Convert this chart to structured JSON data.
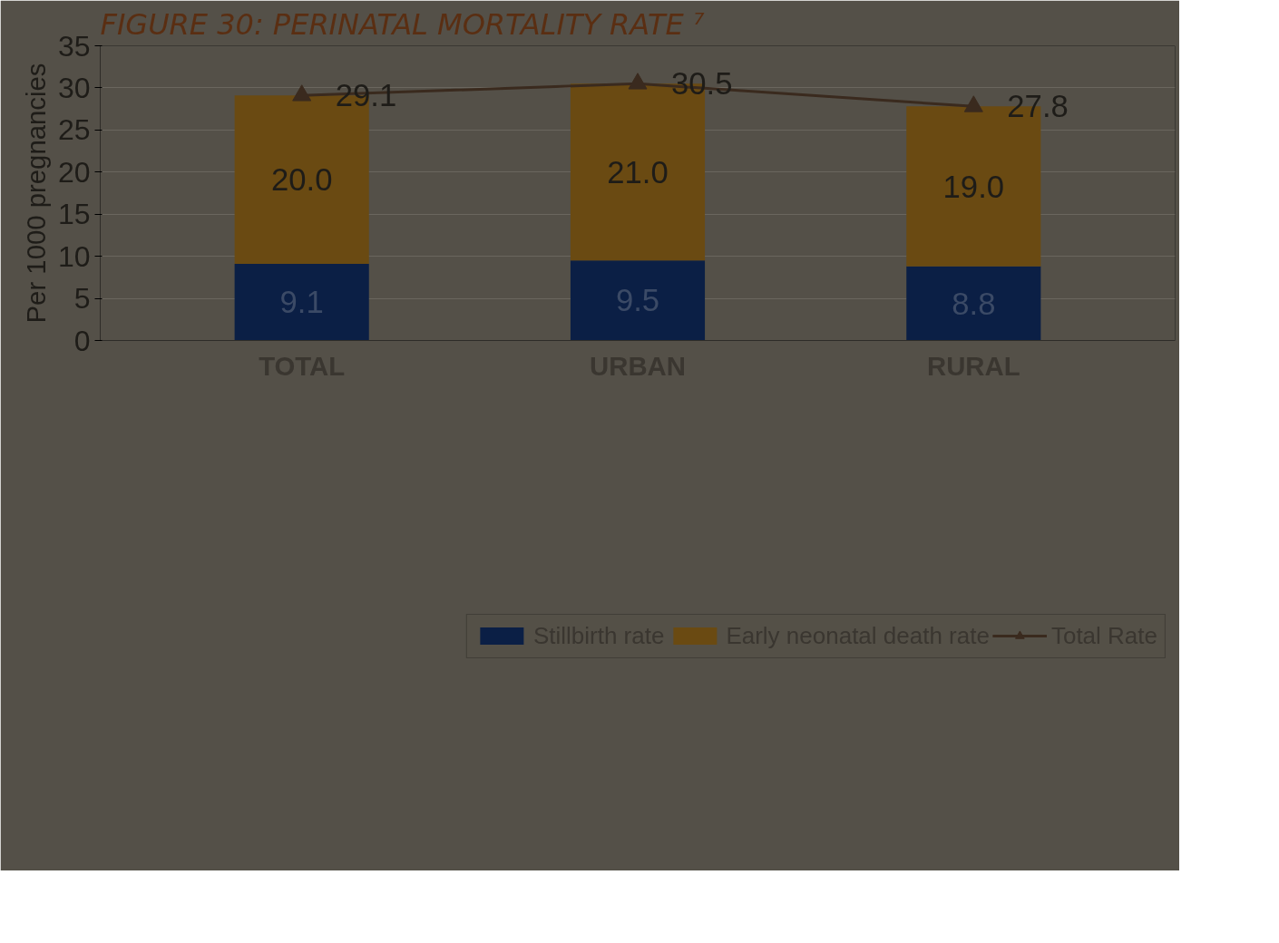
{
  "chart_data": {
    "type": "bar",
    "stacked": true,
    "title": "FIGURE 30: PERINATAL MORTALITY RATE ⁷",
    "ylabel": "Per 1000 pregnancies",
    "categories": [
      "TOTAL",
      "URBAN",
      "RURAL"
    ],
    "series": [
      {
        "name": "Stillbirth rate",
        "color": "#0b1f45",
        "values": [
          9.1,
          9.5,
          8.8
        ],
        "value_labels": [
          "9.1",
          "9.5",
          "8.8"
        ]
      },
      {
        "name": "Early neonatal death rate",
        "color": "#6a4a12",
        "values": [
          20.0,
          21.0,
          19.0
        ],
        "value_labels": [
          "20.0",
          "21.0",
          "19.0"
        ]
      },
      {
        "name": "Total Rate",
        "type": "line",
        "color": "#3a2a1e",
        "values": [
          29.1,
          30.5,
          27.8
        ],
        "value_labels": [
          "29.1",
          "30.5",
          "27.8"
        ]
      }
    ],
    "ylim": [
      0,
      35
    ],
    "yticks": [
      0,
      5,
      10,
      15,
      20,
      25,
      30,
      35
    ],
    "grid": "y",
    "legend": "bottom",
    "marker": "triangle"
  }
}
